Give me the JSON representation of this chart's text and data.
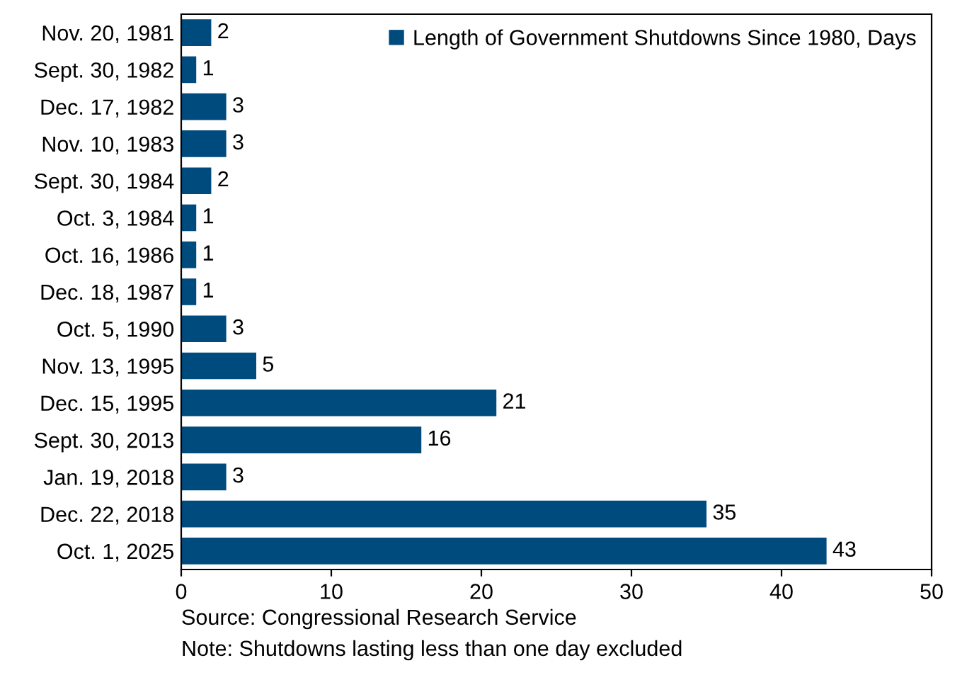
{
  "chart_data": {
    "type": "bar",
    "orientation": "horizontal",
    "categories": [
      "Nov. 20, 1981",
      "Sept. 30, 1982",
      "Dec. 17, 1982",
      "Nov. 10, 1983",
      "Sept. 30, 1984",
      "Oct. 3, 1984",
      "Oct. 16, 1986",
      "Dec. 18, 1987",
      "Oct. 5, 1990",
      "Nov. 13, 1995",
      "Dec. 15, 1995",
      "Sept. 30, 2013",
      "Jan. 19, 2018",
      "Dec. 22, 2018",
      "Oct. 1, 2025"
    ],
    "series": [
      {
        "name": "Length of Government Shutdowns Since 1980, Days",
        "color": "#004b7d",
        "values": [
          2,
          1,
          3,
          3,
          2,
          1,
          1,
          1,
          3,
          5,
          21,
          16,
          3,
          35,
          43
        ]
      }
    ],
    "xlim": [
      0,
      50
    ],
    "xticks": [
      0,
      10,
      20,
      30,
      40,
      50
    ],
    "data_labels": true,
    "legend": "top right",
    "grid": false,
    "annotations": [
      "Source: Congressional Research Service",
      "Note: Shutdowns lasting less than one day excluded"
    ]
  }
}
